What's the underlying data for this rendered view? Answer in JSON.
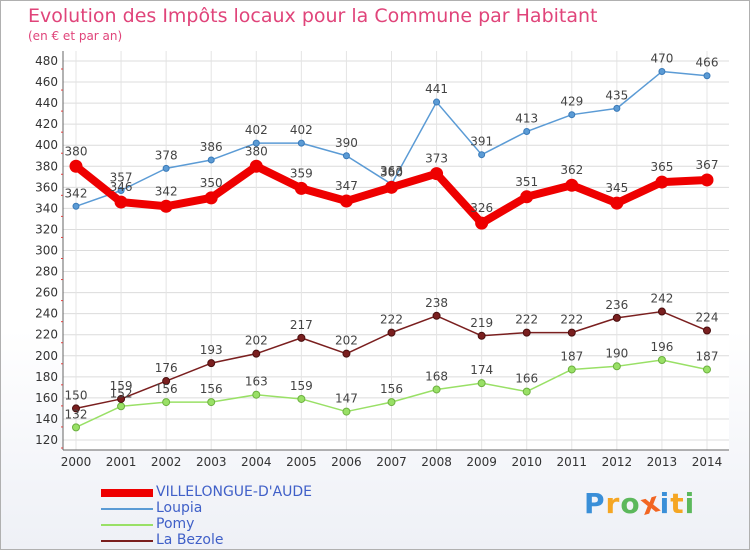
{
  "chart_data": {
    "type": "line",
    "title": "Evolution des Impôts locaux pour la Commune par Habitant",
    "subtitle": "(en € et par an)",
    "xlabel": "",
    "ylabel": "",
    "categories": [
      "2000",
      "2001",
      "2002",
      "2003",
      "2004",
      "2005",
      "2006",
      "2007",
      "2008",
      "2009",
      "2010",
      "2011",
      "2012",
      "2013",
      "2014"
    ],
    "ylim": [
      120,
      480
    ],
    "y_ticks": [
      120,
      140,
      160,
      180,
      200,
      220,
      240,
      260,
      280,
      300,
      320,
      340,
      360,
      380,
      400,
      420,
      440,
      460,
      480
    ],
    "grid": true,
    "series": [
      {
        "name": "VILLELONGUE-D'AUDE",
        "color": "#ee0000",
        "width": 8,
        "marker": 6,
        "values": [
          380,
          346,
          342,
          350,
          380,
          359,
          347,
          360,
          373,
          326,
          351,
          362,
          345,
          365,
          367
        ],
        "labels": [
          "380",
          "346",
          "342",
          "350",
          "380",
          "359",
          "347",
          "360",
          "373",
          "326",
          "351",
          "362",
          "345",
          "365",
          "367"
        ]
      },
      {
        "name": "Loupia",
        "color": "#5b9bd5",
        "width": 1.5,
        "marker": 3,
        "values": [
          342,
          357,
          378,
          386,
          402,
          402,
          390,
          363,
          441,
          391,
          413,
          429,
          435,
          470,
          466
        ],
        "labels": [
          "342",
          "357",
          "378",
          "386",
          "402",
          "402",
          "390",
          "363",
          "441",
          "391",
          "413",
          "429",
          "435",
          "470",
          "466"
        ]
      },
      {
        "name": "Pomy",
        "color": "#99e066",
        "width": 1.5,
        "marker": 3.5,
        "values": [
          132,
          152,
          156,
          156,
          163,
          159,
          147,
          156,
          168,
          174,
          166,
          187,
          190,
          196,
          187
        ],
        "labels": [
          "132",
          "152",
          "156",
          "156",
          "163",
          "159",
          "147",
          "156",
          "168",
          "174",
          "166",
          "187",
          "190",
          "196",
          "187"
        ]
      },
      {
        "name": "La Bezole",
        "color": "#7a1f1f",
        "width": 1.5,
        "marker": 3.5,
        "values": [
          150,
          159,
          176,
          193,
          202,
          217,
          202,
          222,
          238,
          219,
          222,
          222,
          236,
          242,
          224
        ],
        "labels": [
          "150",
          "159",
          "176",
          "193",
          "202",
          "217",
          "202",
          "222",
          "238",
          "219",
          "222",
          "222",
          "236",
          "242",
          "224"
        ]
      }
    ]
  },
  "legend": {
    "items": [
      {
        "label": "VILLELONGUE-D'AUDE",
        "color": "#ee0000",
        "thickness": 8
      },
      {
        "label": "Loupia",
        "color": "#5b9bd5",
        "thickness": 2
      },
      {
        "label": "Pomy",
        "color": "#99e066",
        "thickness": 2
      },
      {
        "label": "La Bezole",
        "color": "#7a1f1f",
        "thickness": 2
      }
    ]
  },
  "brand": {
    "letters": [
      "P",
      "r",
      "o",
      "x",
      "i",
      "t",
      "i"
    ],
    "colors": [
      "#3a8fd8",
      "#f5a623",
      "#5cb85c",
      "#f26522",
      "#3a8fd8",
      "#f5a623",
      "#5cb85c"
    ]
  }
}
